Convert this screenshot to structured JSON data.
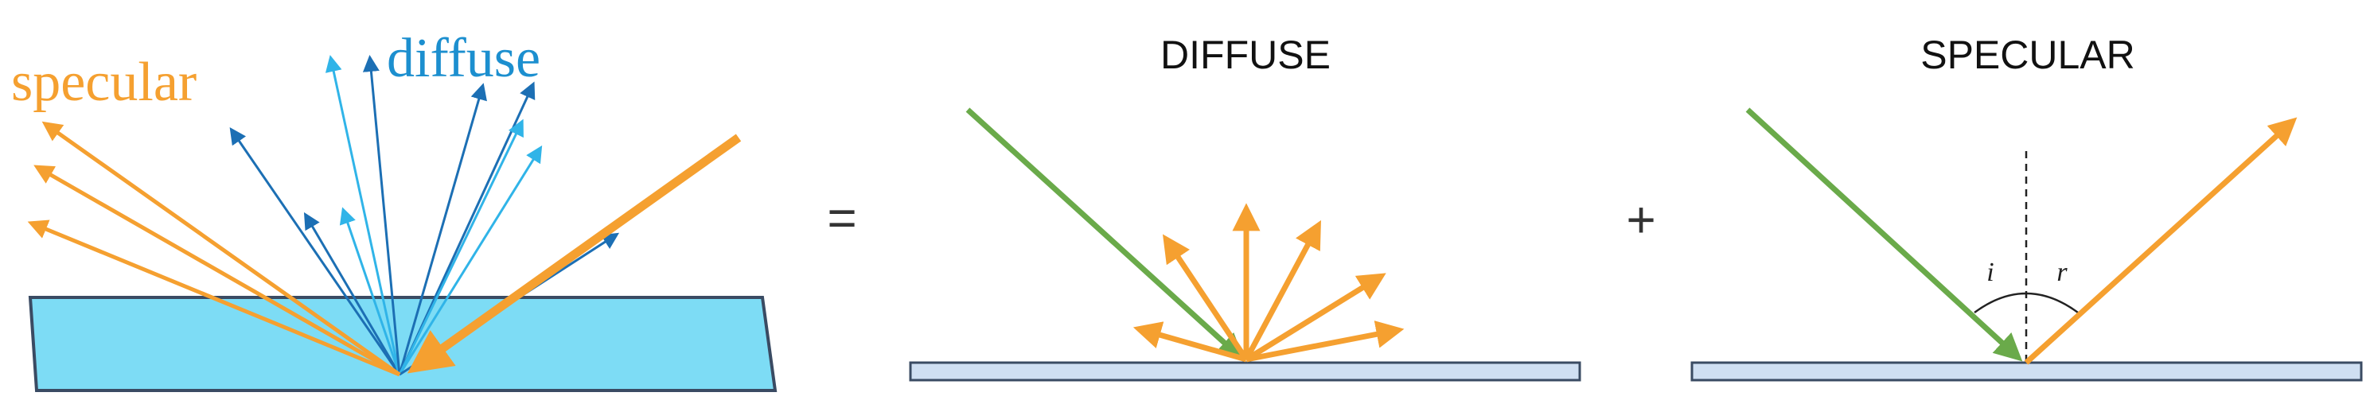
{
  "panels": {
    "combined": {
      "specular_label": "specular",
      "diffuse_label": "diffuse"
    },
    "diffuse": {
      "title": "DIFFUSE"
    },
    "specular": {
      "title": "SPECULAR",
      "angle_incidence": "i",
      "angle_reflection": "r"
    }
  },
  "operators": {
    "equals": "=",
    "plus": "+"
  },
  "colors": {
    "incident_ray": "#6aaa4a",
    "reflected_ray": "#f5a030",
    "diffuse_dark": "#1c6fb4",
    "diffuse_light": "#30b4e8",
    "surface_fill_left": "#7ddcf5",
    "surface_fill": "#cfdff2",
    "surface_stroke": "#3a4b63"
  }
}
